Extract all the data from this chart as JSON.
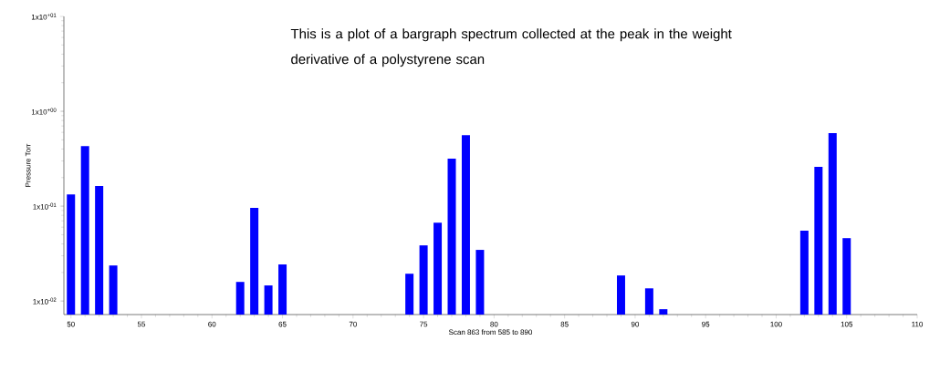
{
  "chart_data": {
    "type": "bar",
    "xlabel": "Scan 863 from 585 to 890",
    "ylabel": "Pressure Torr",
    "annotations": [
      "This is a plot of a bargraph spectrum collected at the peak in the weight derivative of a polystyrene scan"
    ],
    "x": [
      50,
      51,
      52,
      53,
      62,
      63,
      64,
      65,
      74,
      75,
      76,
      77,
      78,
      79,
      89,
      91,
      92,
      102,
      103,
      104,
      105
    ],
    "values": [
      0.133,
      0.43,
      0.163,
      0.0237,
      0.0159,
      0.096,
      0.0146,
      0.0243,
      0.0194,
      0.0386,
      0.067,
      0.316,
      0.56,
      0.0346,
      0.0186,
      0.0136,
      0.0082,
      0.055,
      0.26,
      0.59,
      0.046
    ],
    "color": "#0000ff",
    "log": true,
    "xlim": [
      49.5,
      110
    ],
    "xticks": [
      50,
      55,
      60,
      65,
      70,
      75,
      80,
      85,
      90,
      95,
      100,
      105,
      110
    ],
    "ylim": [
      0.0072,
      10
    ],
    "yticks": [
      {
        "value": 0.01,
        "label": "1x10$^{-02}$"
      },
      {
        "value": 0.1,
        "label": "1x10$^{-01}$"
      },
      {
        "value": 1,
        "label": "1x10$^{+00}$"
      },
      {
        "value": 10,
        "label": "1x10$^{+01}$"
      }
    ]
  }
}
